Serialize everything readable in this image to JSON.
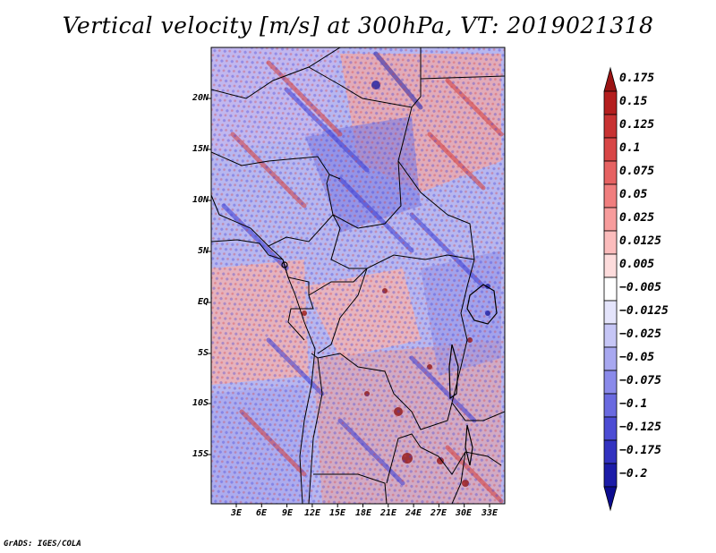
{
  "title": "Vertical velocity [m/s] at 300hPa, VT: 2019021318",
  "credit": "GrADS: IGES/COLA",
  "map": {
    "lat_labels": [
      "20N",
      "15N",
      "10N",
      "5N",
      "EQ",
      "5S",
      "10S",
      "15S"
    ],
    "lon_labels": [
      "3E",
      "6E",
      "9E",
      "12E",
      "15E",
      "18E",
      "21E",
      "24E",
      "27E",
      "30E",
      "33E"
    ]
  },
  "colorbar": {
    "labels": [
      "0.175",
      "0.15",
      "0.125",
      "0.1",
      "0.075",
      "0.05",
      "0.025",
      "0.0125",
      "0.005",
      "−0.005",
      "−0.0125",
      "−0.025",
      "−0.05",
      "−0.075",
      "−0.1",
      "−0.125",
      "−0.175",
      "−0.2"
    ],
    "colors": [
      "#9b1414",
      "#b41e1e",
      "#c83232",
      "#d84646",
      "#e66262",
      "#f07e7e",
      "#f79c9c",
      "#fbbcbc",
      "#fddcdc",
      "#ffffff",
      "#e4e4fb",
      "#c6c6f6",
      "#a8a8f0",
      "#8a8aea",
      "#6a6ae0",
      "#4c4cd4",
      "#3232c0",
      "#1c1ca8",
      "#0c0c90"
    ]
  },
  "colors": {
    "positive": "#d23c3c",
    "negative": "#3c3cd2",
    "background": "#ffffff"
  }
}
